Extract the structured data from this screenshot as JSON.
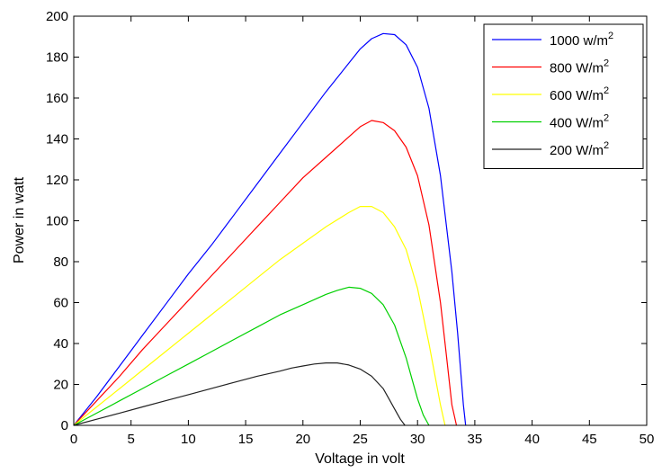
{
  "chart_data": {
    "type": "line",
    "xlabel": "Voltage in volt",
    "ylabel": "Power in watt",
    "xlim": [
      0,
      50
    ],
    "ylim": [
      0,
      200
    ],
    "xticks": [
      "0",
      "5",
      "10",
      "15",
      "20",
      "25",
      "30",
      "35",
      "40",
      "45",
      "50"
    ],
    "yticks": [
      "0",
      "20",
      "40",
      "60",
      "80",
      "100",
      "120",
      "140",
      "160",
      "180",
      "200"
    ],
    "grid": false,
    "legend_position": "top-right",
    "series": [
      {
        "name": "1000 w/m",
        "name_sup": "2",
        "color": "#0000ff",
        "x": [
          0,
          2,
          4,
          6,
          8,
          10,
          12,
          14,
          16,
          18,
          20,
          22,
          24,
          25,
          26,
          27,
          28,
          29,
          30,
          31,
          32,
          33,
          33.5,
          34,
          34.2
        ],
        "y": [
          0,
          14,
          29,
          44,
          59,
          74,
          88,
          103,
          118,
          133,
          148,
          163,
          177,
          184,
          189,
          191.5,
          191,
          186,
          175,
          155,
          122,
          75,
          45,
          10,
          0
        ]
      },
      {
        "name": "800 W/m",
        "name_sup": "2",
        "color": "#ff0000",
        "x": [
          0,
          2,
          4,
          6,
          8,
          10,
          12,
          14,
          16,
          18,
          20,
          22,
          24,
          25,
          26,
          27,
          28,
          29,
          30,
          31,
          32,
          32.5,
          33,
          33.4
        ],
        "y": [
          0,
          12,
          24,
          37,
          49,
          61,
          73,
          85,
          97,
          109,
          121,
          131,
          141,
          146,
          149,
          148,
          144,
          136,
          122,
          98,
          60,
          35,
          10,
          0
        ]
      },
      {
        "name": "600 W/m",
        "name_sup": "2",
        "color": "#ffff00",
        "x": [
          0,
          2,
          4,
          6,
          8,
          10,
          12,
          14,
          16,
          18,
          20,
          22,
          24,
          25,
          26,
          27,
          28,
          29,
          30,
          31,
          31.5,
          32,
          32.4
        ],
        "y": [
          0,
          9,
          18,
          27,
          36,
          45,
          54,
          63,
          72,
          81,
          89,
          97,
          104,
          107,
          107,
          104,
          97,
          86,
          67,
          40,
          25,
          10,
          0
        ]
      },
      {
        "name": "400 W/m",
        "name_sup": "2",
        "color": "#00d000",
        "x": [
          0,
          2,
          4,
          6,
          8,
          10,
          12,
          14,
          16,
          18,
          20,
          22,
          23,
          24,
          25,
          26,
          27,
          28,
          29,
          29.5,
          30,
          30.5,
          31
        ],
        "y": [
          0,
          6,
          12,
          18,
          24,
          30,
          36,
          42,
          48,
          54,
          59,
          64,
          66,
          67.5,
          67,
          64.5,
          59,
          49,
          33,
          23,
          13,
          5,
          0
        ]
      },
      {
        "name": "200 W/m",
        "name_sup": "2",
        "color": "#222222",
        "x": [
          0,
          2,
          4,
          6,
          8,
          10,
          12,
          14,
          16,
          18,
          19,
          20,
          21,
          22,
          23,
          24,
          25,
          26,
          27,
          27.5,
          28,
          28.5,
          28.9
        ],
        "y": [
          0,
          3,
          6,
          9,
          12,
          15,
          18,
          21,
          24,
          26.5,
          28,
          29,
          30,
          30.5,
          30.5,
          29.5,
          27.5,
          24,
          18,
          13,
          8,
          3,
          0
        ]
      }
    ]
  }
}
